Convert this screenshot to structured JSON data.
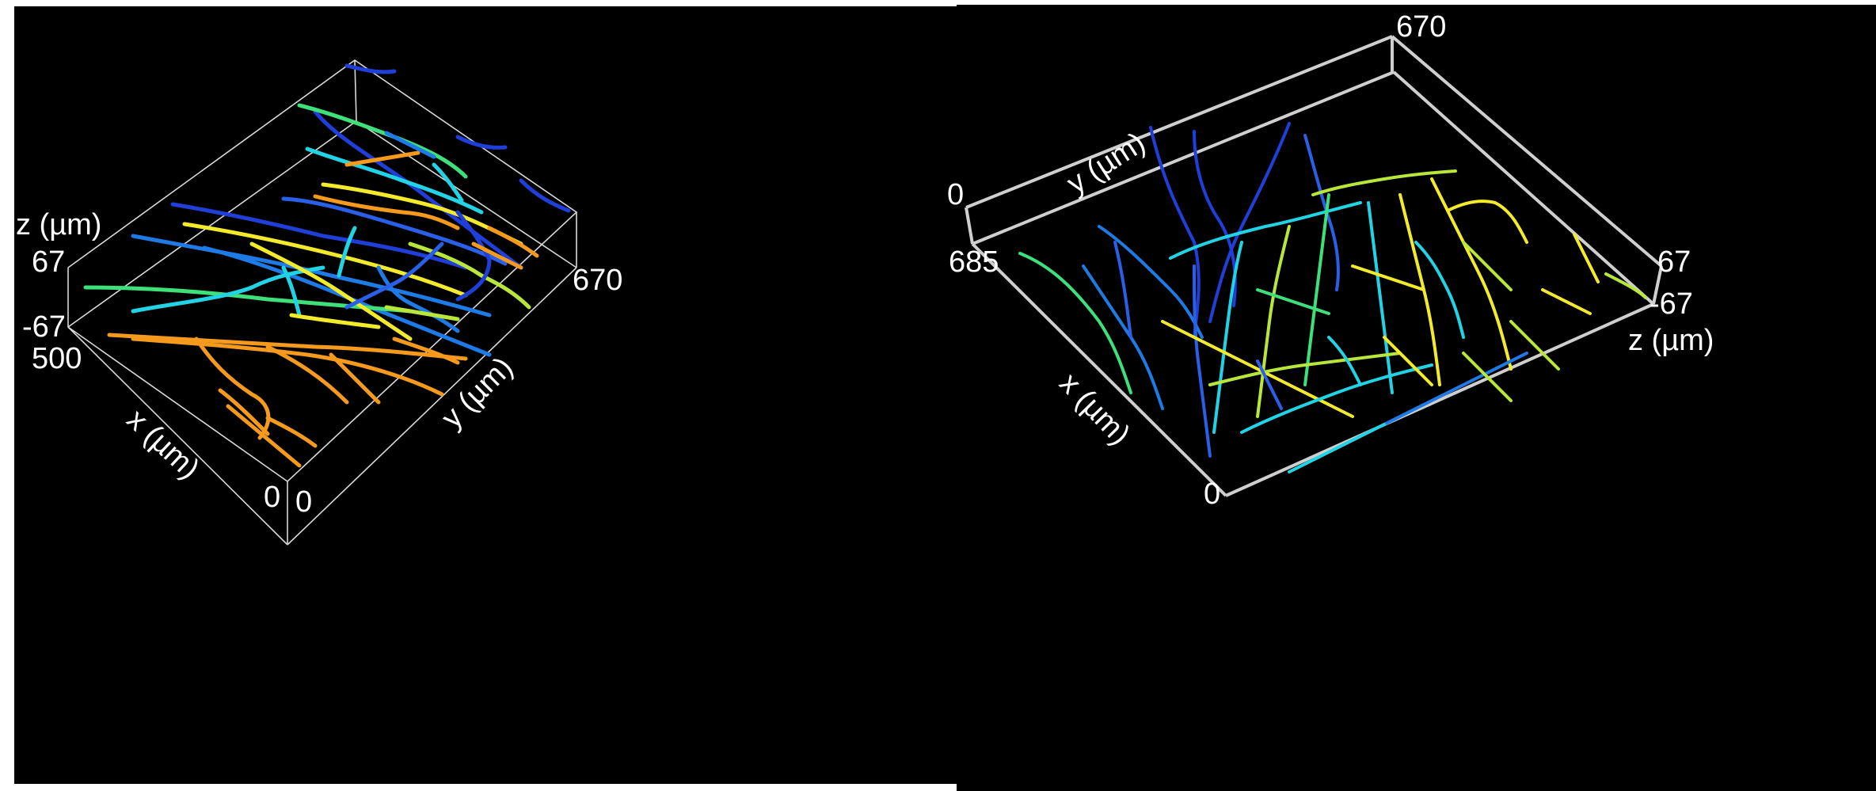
{
  "left_panel": {
    "z_axis_label": "z (µm)",
    "z_max": "67",
    "z_min": "-67",
    "x_max": "500",
    "x_axis_label": "x (µm)",
    "x_zero": "0",
    "y_zero": "0",
    "y_max": "670",
    "y_axis_label": "y (µm)"
  },
  "right_panel": {
    "y_max": "670",
    "y_axis_label": "y (µm)",
    "y_zero": "0",
    "x_max": "685",
    "x_axis_label": "x (µm)",
    "x_zero": "0",
    "z_max": "67",
    "z_min": "-67",
    "z_axis_label": "z (µm)"
  },
  "colors": {
    "background": "#000000",
    "deep_blue": "#1f3fd8",
    "blue": "#1e7be6",
    "cyan": "#22d3e6",
    "green": "#3ee07a",
    "yellow_green": "#b8e63a",
    "yellow": "#f2ea2a",
    "orange": "#f59a1c"
  }
}
